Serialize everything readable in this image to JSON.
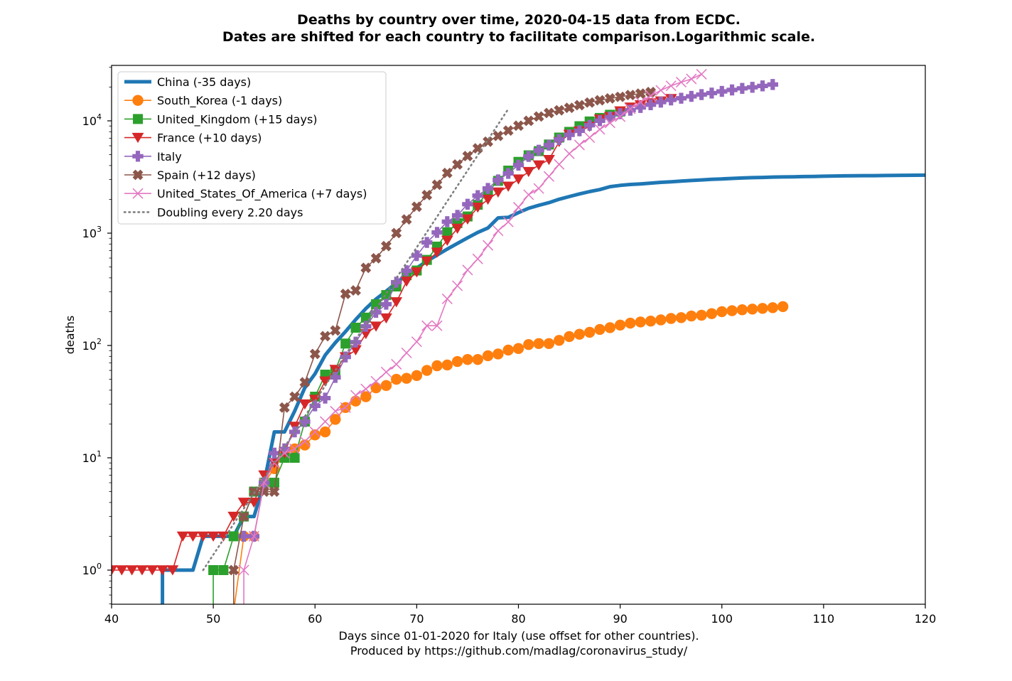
{
  "chart_data": {
    "type": "line",
    "title_lines": [
      "Deaths by country over time, 2020-04-15 data from ECDC.",
      "Dates are shifted for each country to facilitate comparison.Logarithmic scale."
    ],
    "xlabel_lines": [
      "Days since 01-01-2020 for Italy (use offset for other countries).",
      "Produced by https://github.com/madlag/coronavirus_study/"
    ],
    "ylabel": "deaths",
    "yscale": "log",
    "xlim": [
      40,
      120
    ],
    "ylim": [
      0.5,
      30000
    ],
    "grid": false,
    "legend_position": "top-left",
    "x_ticks": [
      40,
      50,
      60,
      70,
      80,
      90,
      100,
      110,
      120
    ],
    "y_ticks": [
      {
        "value": 1,
        "base": "10",
        "exp": "0"
      },
      {
        "value": 10,
        "base": "10",
        "exp": "1"
      },
      {
        "value": 100,
        "base": "10",
        "exp": "2"
      },
      {
        "value": 1000,
        "base": "10",
        "exp": "3"
      },
      {
        "value": 10000,
        "base": "10",
        "exp": "4"
      }
    ],
    "series": [
      {
        "name": "China (-35 days)",
        "color": "#1f77b4",
        "marker": "none",
        "style": "thick",
        "x": [
          45,
          45,
          46,
          47,
          48,
          49,
          50,
          51,
          52,
          53,
          54,
          55,
          56,
          57,
          58,
          59,
          60,
          61,
          62,
          63,
          64,
          65,
          66,
          67,
          68,
          69,
          70,
          71,
          72,
          73,
          74,
          75,
          76,
          77,
          78,
          79,
          80,
          81,
          82,
          83,
          84,
          85,
          86,
          87,
          88,
          89,
          90,
          91,
          92,
          93,
          94,
          95,
          96,
          97,
          98,
          99,
          100,
          101,
          102,
          103,
          104,
          105,
          106,
          107,
          108,
          109,
          110,
          111,
          112,
          113,
          114,
          115,
          116,
          117,
          118,
          119,
          120
        ],
        "y": [
          0.3,
          1,
          1,
          1,
          1,
          2,
          2,
          2,
          2,
          3,
          3,
          6,
          17,
          17,
          26,
          42,
          56,
          82,
          106,
          133,
          170,
          213,
          259,
          304,
          361,
          425,
          490,
          563,
          637,
          722,
          811,
          908,
          1016,
          1113,
          1368,
          1381,
          1523,
          1665,
          1770,
          1868,
          2004,
          2118,
          2236,
          2345,
          2442,
          2592,
          2663,
          2715,
          2744,
          2788,
          2835,
          2870,
          2912,
          2943,
          2981,
          3012,
          3042,
          3070,
          3097,
          3119,
          3136,
          3158,
          3169,
          3176,
          3189,
          3199,
          3213,
          3226,
          3237,
          3245,
          3249,
          3253,
          3261,
          3270,
          3277,
          3281,
          3285
        ]
      },
      {
        "name": "South_Korea (-1 days)",
        "color": "#ff7f0e",
        "marker": "circle",
        "x": [
          52,
          53,
          54,
          55,
          56,
          57,
          58,
          59,
          60,
          61,
          62,
          63,
          64,
          65,
          66,
          67,
          68,
          69,
          70,
          71,
          72,
          73,
          74,
          75,
          76,
          77,
          78,
          79,
          80,
          81,
          82,
          83,
          84,
          85,
          86,
          87,
          88,
          89,
          90,
          91,
          92,
          93,
          94,
          95,
          96,
          97,
          98,
          99,
          100,
          101,
          102,
          103,
          104,
          105,
          106
        ],
        "y": [
          0.3,
          2,
          2,
          6,
          8,
          11,
          12,
          13,
          16,
          17,
          22,
          28,
          32,
          35,
          42,
          44,
          50,
          51,
          54,
          60,
          66,
          67,
          72,
          75,
          75,
          81,
          84,
          91,
          94,
          102,
          104,
          104,
          111,
          120,
          126,
          131,
          139,
          144,
          152,
          158,
          162,
          165,
          169,
          174,
          177,
          183,
          186,
          192,
          200,
          204,
          208,
          211,
          214,
          217,
          222
        ]
      },
      {
        "name": "United_Kingdom (+15 days)",
        "color": "#2ca02c",
        "marker": "square",
        "x": [
          50,
          50,
          51,
          52,
          53,
          54,
          55,
          56,
          57,
          58,
          59,
          60,
          61,
          62,
          63,
          64,
          65,
          66,
          67,
          68,
          69,
          70,
          71,
          72,
          73,
          74,
          75,
          76,
          77,
          78,
          79,
          80,
          81,
          82,
          83,
          84,
          85,
          86,
          87,
          88,
          89,
          90
        ],
        "y": [
          0.3,
          1,
          1,
          2,
          3,
          5,
          6,
          6,
          10,
          10,
          21,
          35,
          55,
          60,
          104,
          144,
          177,
          233,
          281,
          335,
          422,
          465,
          578,
          759,
          1019,
          1228,
          1408,
          1789,
          2352,
          2921,
          3605,
          4313,
          4934,
          5373,
          6159,
          7097,
          7978,
          8958,
          9875,
          10612,
          11329,
          12107
        ]
      },
      {
        "name": "France (+10 days)",
        "color": "#d62728",
        "marker": "triangle-down",
        "x": [
          40,
          41,
          42,
          43,
          44,
          45,
          46,
          47,
          48,
          49,
          50,
          51,
          52,
          53,
          54,
          55,
          56,
          57,
          58,
          59,
          60,
          61,
          62,
          63,
          64,
          65,
          66,
          67,
          68,
          69,
          70,
          71,
          72,
          73,
          74,
          75,
          76,
          77,
          78,
          79,
          80,
          81,
          82,
          83,
          84,
          85,
          86,
          87,
          88,
          89,
          90,
          91,
          92,
          93,
          94,
          95
        ],
        "y": [
          1,
          1,
          1,
          1,
          1,
          1,
          1,
          2,
          2,
          2,
          2,
          2,
          3,
          4,
          4,
          7,
          9,
          11,
          19,
          30,
          33,
          48,
          61,
          79,
          91,
          127,
          148,
          175,
          244,
          372,
          450,
          562,
          674,
          860,
          1100,
          1331,
          1696,
          1995,
          2314,
          2606,
          3024,
          3523,
          4032,
          4503,
          6507,
          7560,
          8078,
          8911,
          10328,
          10869,
          12210,
          13197,
          13832,
          14393,
          14967,
          15729
        ]
      },
      {
        "name": "Italy",
        "color": "#9467bd",
        "marker": "plus-filled",
        "x": [
          53,
          54,
          55,
          56,
          57,
          58,
          59,
          60,
          61,
          62,
          63,
          64,
          65,
          66,
          67,
          68,
          69,
          70,
          71,
          72,
          73,
          74,
          75,
          76,
          77,
          78,
          79,
          80,
          81,
          82,
          83,
          84,
          85,
          86,
          87,
          88,
          89,
          90,
          91,
          92,
          93,
          94,
          95,
          96,
          97,
          98,
          99,
          100,
          101,
          102,
          103,
          104,
          105
        ],
        "y": [
          2,
          2,
          6,
          11,
          12,
          17,
          21,
          29,
          34,
          52,
          79,
          107,
          148,
          197,
          233,
          366,
          463,
          631,
          827,
          1016,
          1266,
          1441,
          1809,
          2158,
          2503,
          2978,
          3405,
          4032,
          4825,
          5476,
          6077,
          6820,
          7503,
          8165,
          9134,
          10023,
          10779,
          11591,
          12428,
          13155,
          13915,
          14681,
          15362,
          15887,
          16523,
          17127,
          17669,
          18279,
          18849,
          19468,
          19899,
          20465,
          21067
        ]
      },
      {
        "name": "Spain (+12 days)",
        "color": "#8c564b",
        "marker": "x-filled",
        "x": [
          52,
          52,
          53,
          54,
          55,
          56,
          57,
          58,
          59,
          60,
          61,
          62,
          63,
          64,
          65,
          66,
          67,
          68,
          69,
          70,
          71,
          72,
          73,
          74,
          75,
          76,
          77,
          78,
          79,
          80,
          81,
          82,
          83,
          84,
          85,
          86,
          87,
          88,
          89,
          90,
          91,
          92,
          93
        ],
        "y": [
          0.3,
          1,
          3,
          5,
          5,
          5,
          28,
          35,
          47,
          84,
          121,
          136,
          288,
          309,
          491,
          598,
          767,
          1002,
          1326,
          1720,
          2182,
          2696,
          3434,
          4089,
          4858,
          5690,
          6528,
          7340,
          8189,
          9053,
          10003,
          10935,
          11744,
          12418,
          13055,
          13798,
          14555,
          15238,
          15843,
          16353,
          16972,
          17489,
          18056
        ]
      },
      {
        "name": "United_States_Of_America (+7 days)",
        "color": "#e377c2",
        "marker": "x",
        "x": [
          53,
          53,
          54,
          55,
          56,
          57,
          58,
          59,
          60,
          61,
          62,
          63,
          64,
          65,
          66,
          67,
          68,
          69,
          70,
          71,
          72,
          73,
          74,
          75,
          76,
          77,
          78,
          79,
          80,
          81,
          82,
          83,
          84,
          85,
          86,
          87,
          88,
          89,
          90,
          91,
          92,
          93,
          94,
          95,
          96,
          97,
          98
        ],
        "y": [
          0.3,
          1,
          2,
          6,
          9,
          11,
          12,
          14,
          17,
          21,
          26,
          28,
          36,
          41,
          48,
          58,
          68,
          86,
          108,
          150,
          150,
          260,
          340,
          470,
          590,
          780,
          1050,
          1260,
          1700,
          2200,
          2500,
          3200,
          4100,
          5100,
          6100,
          7100,
          8400,
          9600,
          10900,
          12800,
          14700,
          16700,
          18700,
          20500,
          22100,
          23600,
          26000
        ]
      },
      {
        "name": "Doubling every 2.20 days",
        "color": "#7f7f7f",
        "marker": "none",
        "style": "dotted",
        "doubling_days": 2.2,
        "x_start": 49,
        "y_start": 1,
        "x_end": 79
      }
    ]
  }
}
